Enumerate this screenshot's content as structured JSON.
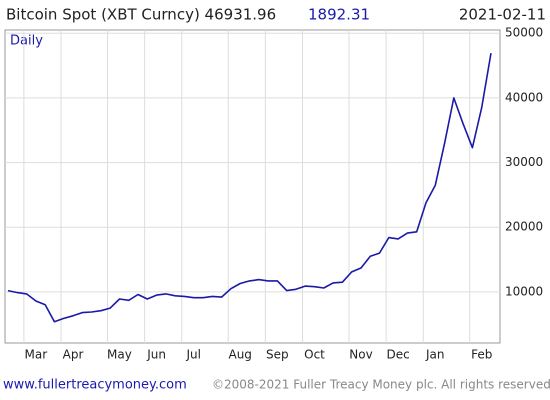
{
  "chart_data": {
    "type": "line",
    "title": "Bitcoin Spot (XBT Curncy) 46931.96",
    "change": "1892.31",
    "date": "2021-02-11",
    "annotation": "Daily",
    "footer_site": "www.fullertreacymoney.com",
    "footer_copyright": "©2008-2021 Fuller Treacy Money plc. All rights reserved",
    "categories": [
      null,
      null,
      null,
      "Mar",
      null,
      null,
      null,
      "Apr",
      null,
      null,
      null,
      null,
      "May",
      null,
      null,
      null,
      "Jun",
      null,
      null,
      null,
      "Jul",
      null,
      null,
      null,
      null,
      "Aug",
      null,
      null,
      null,
      "Sep",
      null,
      null,
      null,
      "Oct",
      null,
      null,
      null,
      null,
      "Nov",
      null,
      null,
      null,
      "Dec",
      null,
      null,
      null,
      "Jan",
      null,
      null,
      null,
      null,
      "Feb",
      null
    ],
    "series": [
      {
        "name": "Bitcoin Spot",
        "color": "#1a1aa8",
        "values": [
          10200,
          9900,
          9700,
          8600,
          8000,
          5400,
          5900,
          6300,
          6800,
          6900,
          7100,
          7500,
          8900,
          8700,
          9600,
          8900,
          9500,
          9700,
          9400,
          9300,
          9100,
          9100,
          9300,
          9200,
          10500,
          11300,
          11700,
          11900,
          11700,
          11700,
          10200,
          10400,
          10900,
          10800,
          10600,
          11400,
          11500,
          13100,
          13700,
          15500,
          16000,
          18400,
          18200,
          19100,
          19300,
          23800,
          26500,
          33000,
          40000,
          36000,
          32300,
          38500,
          46931.96
        ]
      }
    ],
    "ylim": [
      2100,
      50500
    ],
    "yticks": [
      10000,
      20000,
      30000,
      40000,
      50000
    ],
    "grid": true
  }
}
